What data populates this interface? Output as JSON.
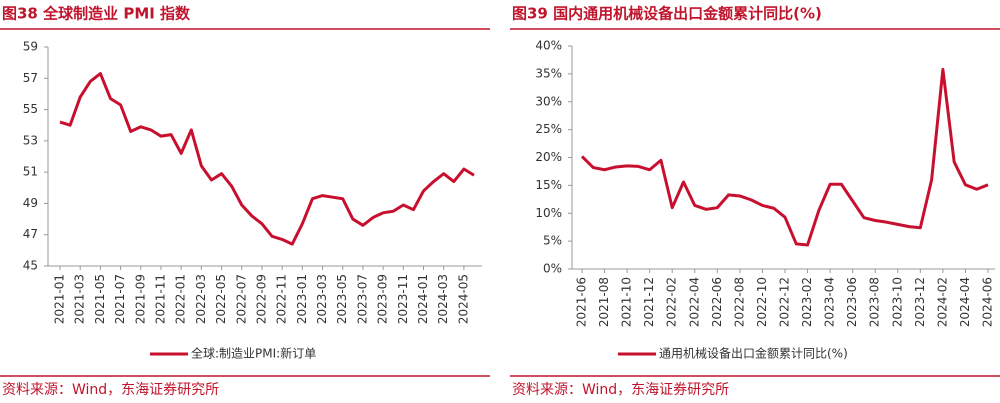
{
  "chart_data": [
    {
      "type": "line",
      "title": "图38  全球制造业 PMI 指数",
      "source": "资料来源：Wind，东海证券研究所",
      "categories": [
        "2021-01",
        null,
        "2021-03",
        null,
        "2021-05",
        null,
        "2021-07",
        null,
        "2021-09",
        null,
        "2021-11",
        null,
        "2022-01",
        null,
        "2022-03",
        null,
        "2022-05",
        null,
        "2022-07",
        null,
        "2022-09",
        null,
        "2022-11",
        null,
        "2023-01",
        null,
        "2023-03",
        null,
        "2023-05",
        null,
        "2023-07",
        null,
        "2023-09",
        null,
        "2023-11",
        null,
        "2024-01",
        null,
        "2024-03",
        null,
        "2024-05",
        null
      ],
      "series": [
        {
          "name": "全球:制造业PMI:新订单",
          "color": "#c8102e",
          "values": [
            54.2,
            54.0,
            55.8,
            56.8,
            57.3,
            55.7,
            55.3,
            53.6,
            53.9,
            53.7,
            53.3,
            53.4,
            52.2,
            53.7,
            51.4,
            50.5,
            50.9,
            50.1,
            48.9,
            48.2,
            47.7,
            46.9,
            46.7,
            46.4,
            47.7,
            49.3,
            49.5,
            49.4,
            49.3,
            48.0,
            47.6,
            48.1,
            48.4,
            48.5,
            48.9,
            48.6,
            49.8,
            50.4,
            50.9,
            50.4,
            51.2,
            50.8
          ]
        }
      ],
      "ylim": [
        45,
        59
      ],
      "yticks": [
        45,
        47,
        49,
        51,
        53,
        55,
        57,
        59
      ]
    },
    {
      "type": "line",
      "title": "图39  国内通用机械设备出口金额累计同比(%)",
      "source": "资料来源：Wind，东海证券研究所",
      "categories": [
        "2021-06",
        null,
        "2021-08",
        null,
        "2021-10",
        null,
        "2021-12",
        null,
        "2022-02",
        null,
        "2022-04",
        null,
        "2022-06",
        null,
        "2022-08",
        null,
        "2022-10",
        null,
        "2022-12",
        null,
        "2023-02",
        null,
        "2023-04",
        null,
        "2023-06",
        null,
        "2023-08",
        null,
        "2023-10",
        null,
        "2023-12",
        null,
        "2024-02",
        null,
        "2024-04",
        null,
        "2024-06"
      ],
      "series": [
        {
          "name": "通用机械设备出口金额累计同比(%)",
          "color": "#c8102e",
          "values": [
            20.2,
            18.2,
            17.8,
            18.3,
            18.5,
            18.4,
            17.8,
            19.5,
            11.0,
            15.6,
            11.4,
            10.7,
            11.0,
            13.3,
            13.1,
            12.4,
            11.4,
            10.9,
            9.3,
            4.5,
            4.3,
            10.5,
            15.2,
            15.2,
            12.2,
            9.2,
            8.7,
            8.4,
            8.0,
            7.6,
            7.4,
            16.0,
            35.8,
            19.2,
            15.1,
            14.3,
            15.1
          ]
        }
      ],
      "ylim": [
        0,
        40
      ],
      "yticks": [
        {
          "value": 0,
          "label": "0%"
        },
        {
          "value": 5,
          "label": "5%"
        },
        {
          "value": 10,
          "label": "10%"
        },
        {
          "value": 15,
          "label": "15%"
        },
        {
          "value": 20,
          "label": "20%"
        },
        {
          "value": 25,
          "label": "25%"
        },
        {
          "value": 30,
          "label": "30%"
        },
        {
          "value": 35,
          "label": "35%"
        },
        {
          "value": 40,
          "label": "40%"
        }
      ]
    }
  ]
}
